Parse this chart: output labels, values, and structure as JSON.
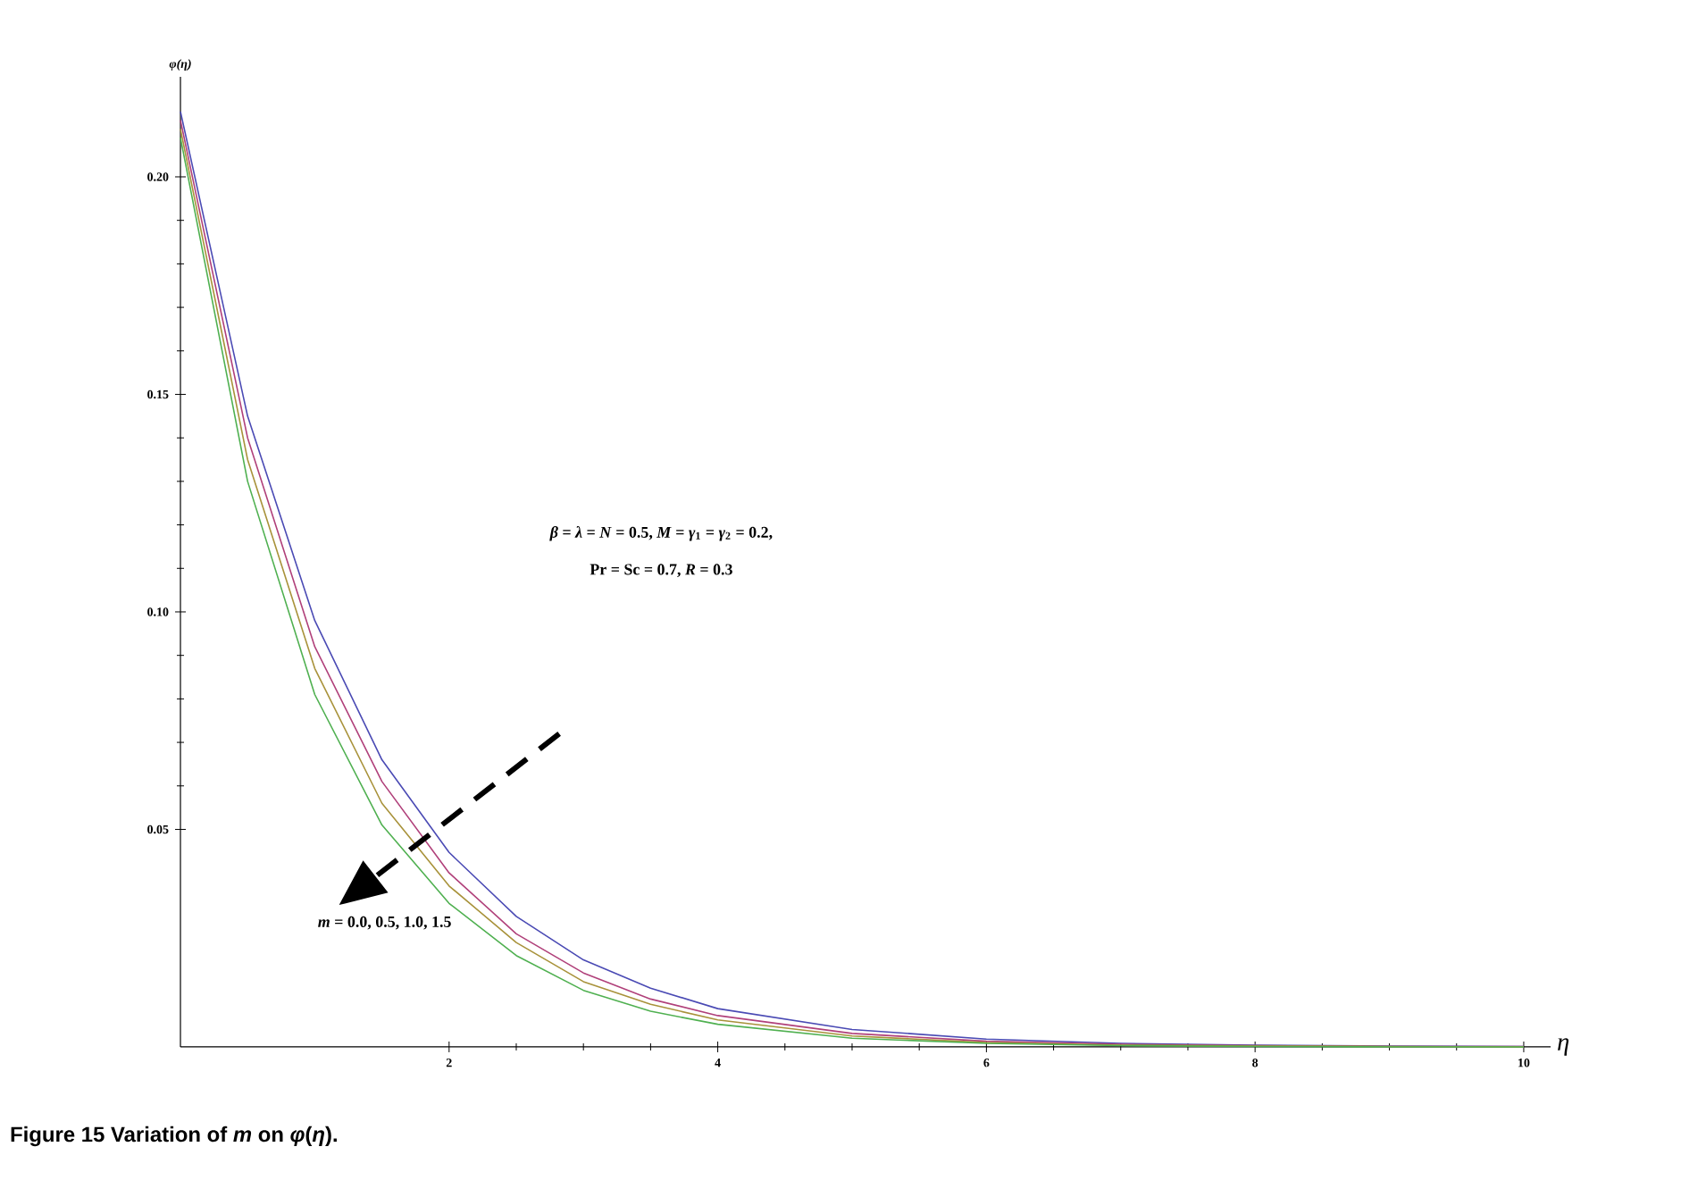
{
  "chart_data": {
    "type": "line",
    "xlabel": "η",
    "ylabel": "φ(η)",
    "annotations": [
      "*β* = *λ* = *N* = 0.5, *M* = *γ*$_{1}$ = *γ*$_{2}$ = 0.2,",
      "Pr = Sc = 0.7, *R* = 0.3",
      "*m* = 0.0, 0.5, 1.0, 1.5",
      "Figure 15  Variation of *m* on *φ*(*η*)."
    ],
    "x": [
      0,
      0.5,
      1,
      1.5,
      2,
      2.5,
      3,
      3.5,
      4,
      5,
      6,
      7,
      8,
      9,
      10
    ],
    "series": [
      {
        "color": "#4a4ab4",
        "values": [
          0.215,
          0.145,
          0.098,
          0.066,
          0.0447,
          0.03,
          0.02,
          0.0135,
          0.0088,
          0.004,
          0.0018,
          0.0008,
          0.0004,
          0.0002,
          0.0001
        ]
      },
      {
        "color": "#b0407a",
        "values": [
          0.213,
          0.14,
          0.092,
          0.061,
          0.04,
          0.026,
          0.017,
          0.011,
          0.0072,
          0.0031,
          0.0013,
          0.0006,
          0.0003,
          0.0001,
          0.0001
        ]
      },
      {
        "color": "#a8923a",
        "values": [
          0.211,
          0.135,
          0.087,
          0.056,
          0.037,
          0.024,
          0.015,
          0.0098,
          0.0062,
          0.0025,
          0.001,
          0.0004,
          0.0002,
          0.0001,
          0.0
        ]
      },
      {
        "color": "#4fb050",
        "values": [
          0.209,
          0.13,
          0.081,
          0.051,
          0.033,
          0.021,
          0.013,
          0.0082,
          0.0052,
          0.002,
          0.0008,
          0.0003,
          0.0001,
          0.0,
          0.0
        ]
      }
    ],
    "xlim": [
      0,
      10.2
    ],
    "ylim": [
      0,
      0.223
    ],
    "xticks": [
      2,
      4,
      6,
      8,
      10
    ],
    "yticks": [
      0.05,
      {
        "value": 0.1,
        "label": "0.10"
      },
      0.15,
      {
        "value": 0.2,
        "label": "0.20"
      }
    ],
    "grid": false,
    "marker": "none",
    "line_style": "solid"
  }
}
